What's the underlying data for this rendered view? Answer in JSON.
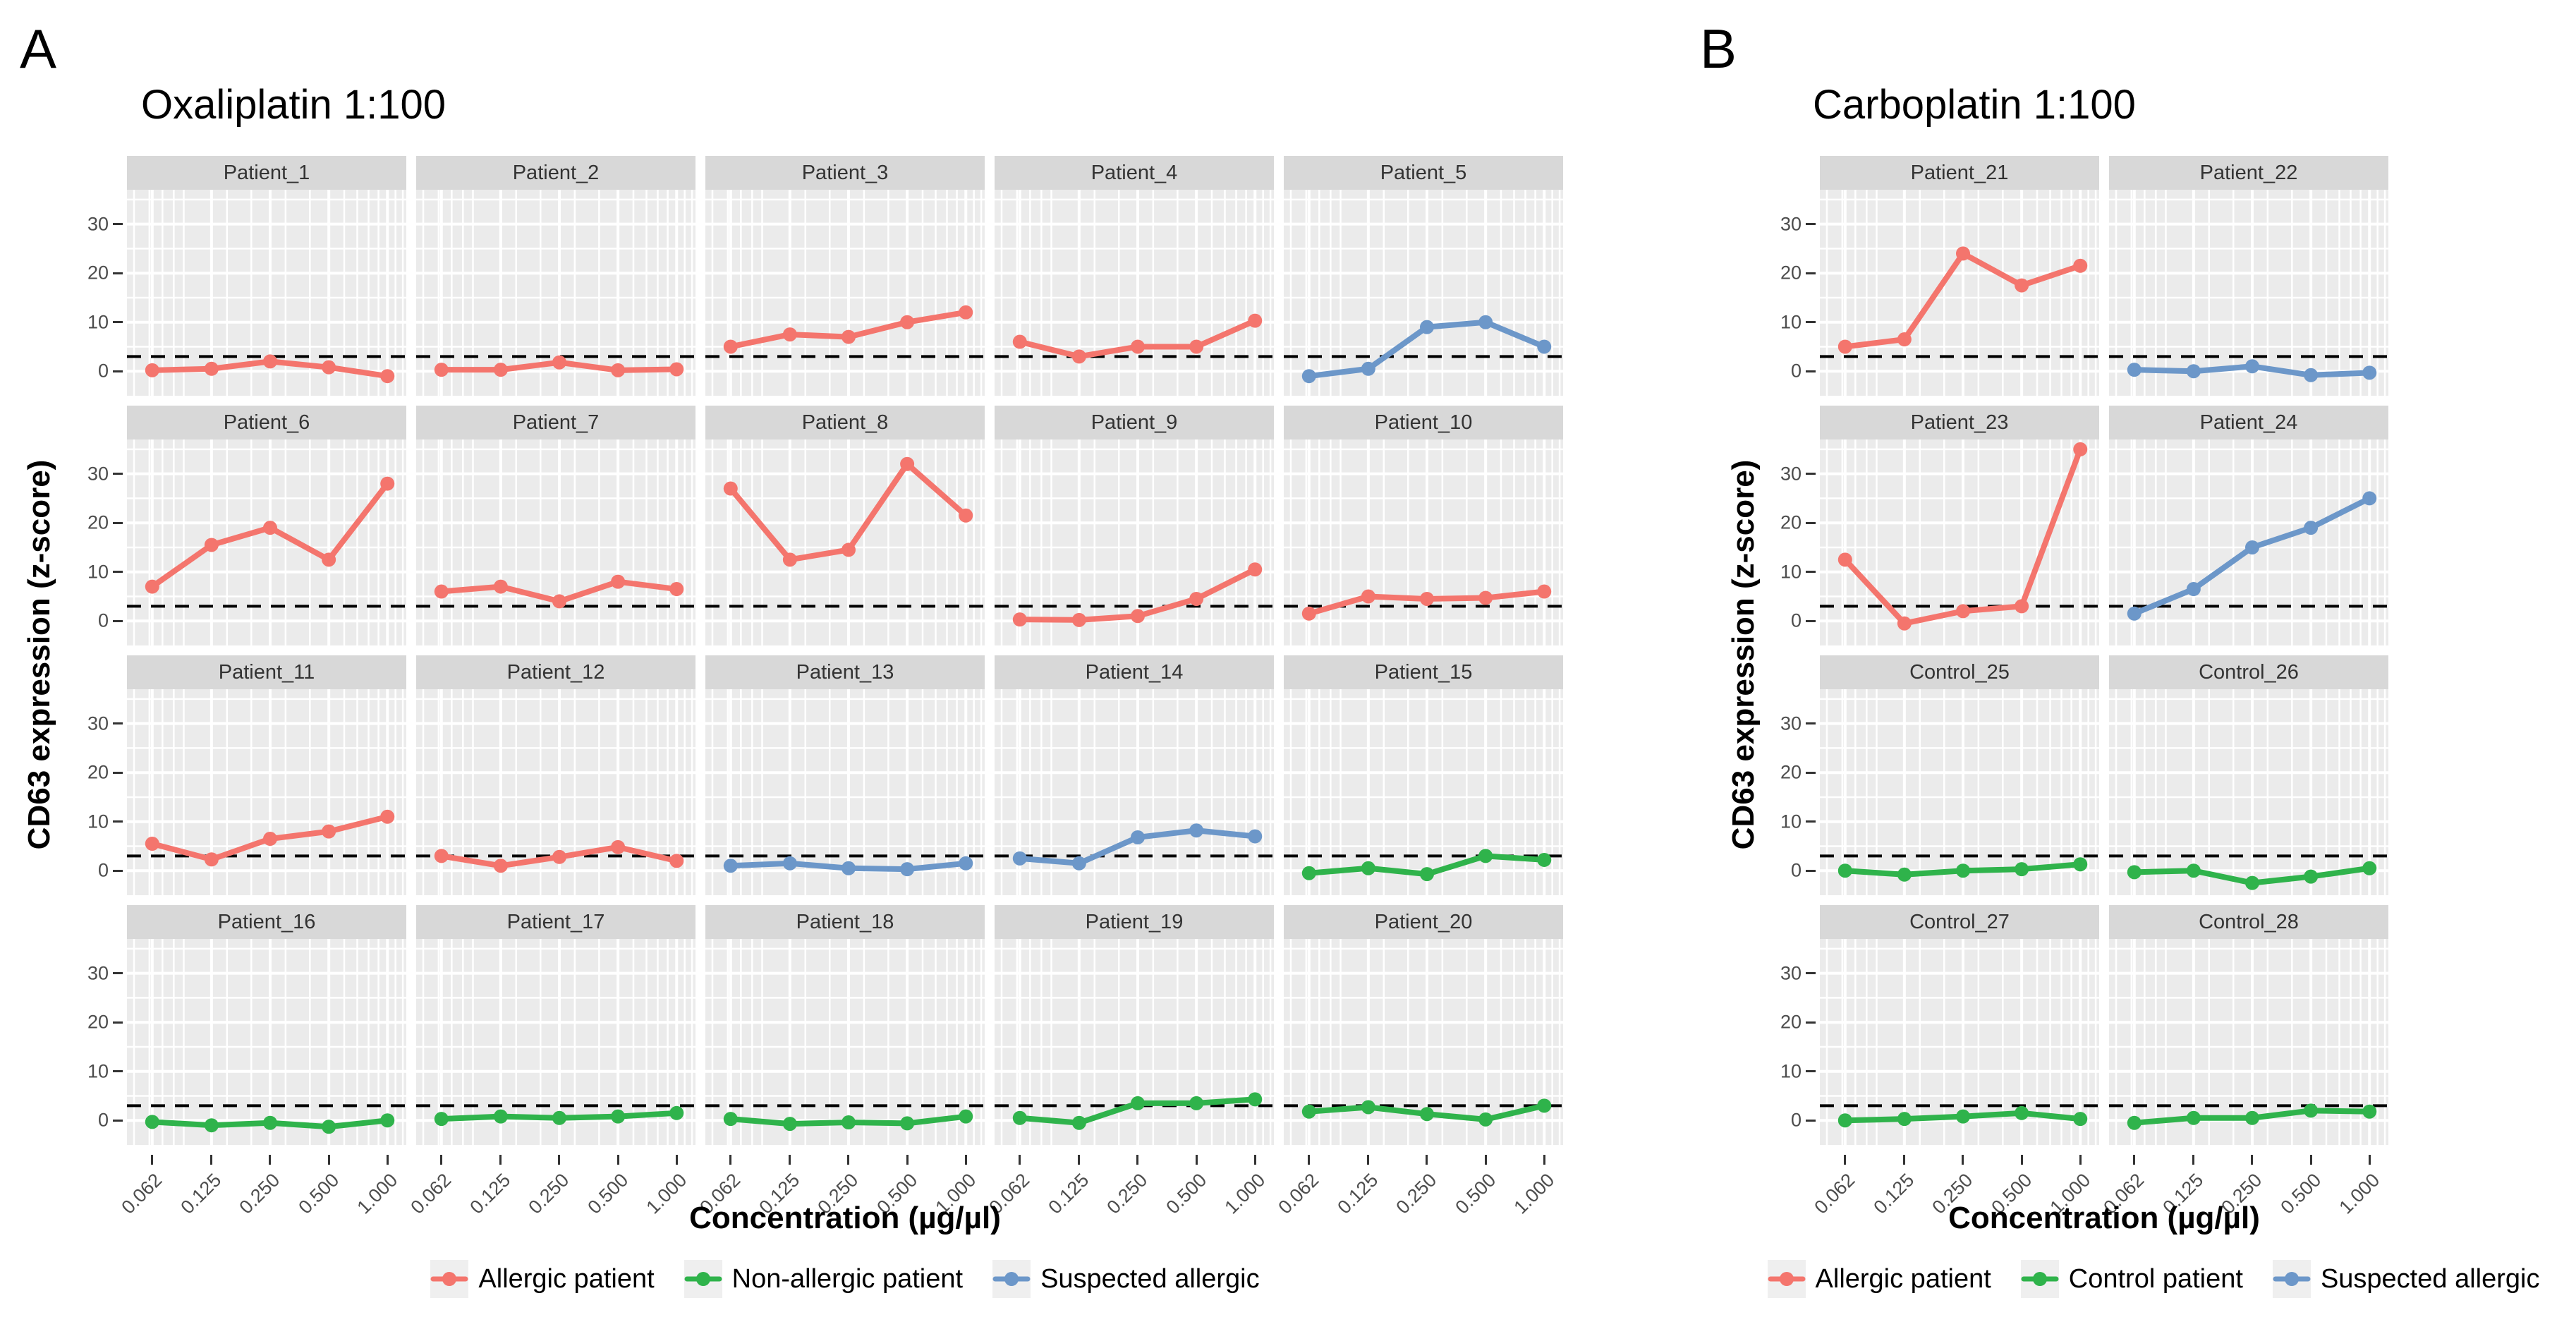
{
  "chart_data": {
    "type": "line",
    "x": [
      0.062,
      0.125,
      0.25,
      0.5,
      1.0
    ],
    "x_tick_labels": [
      "0.062",
      "0.125",
      "0.250",
      "0.500",
      "1.000"
    ],
    "x_scale": "log",
    "xlabel": "Concentration (µg/µl)",
    "ylabel": "CD63 expression (z-score)",
    "y_ticks": [
      0,
      10,
      20,
      30
    ],
    "y_tick_labels": [
      "0",
      "10",
      "20",
      "30"
    ],
    "ylim": [
      -5,
      37
    ],
    "threshold_y": 3,
    "grid": "on",
    "legend_position": "bottom",
    "colors": {
      "allergic": "#F4756D",
      "non_allergic": "#2FB34B",
      "suspected": "#6C97C9",
      "strip_bg": "#D8D8D8",
      "panel_bg": "#EBEBEB",
      "grid": "#FFFFFF",
      "threshold_line": "#000000",
      "axis_text": "#4D4D4D"
    },
    "panels": [
      {
        "panel_label": "A",
        "title": "Oxaliplatin 1:100",
        "columns": 5,
        "legend": [
          {
            "label": "Allergic patient",
            "series": "allergic"
          },
          {
            "label": "Non-allergic patient",
            "series": "non_allergic"
          },
          {
            "label": "Suspected allergic",
            "series": "suspected"
          }
        ],
        "facets": [
          {
            "name": "Patient_1",
            "series": "allergic",
            "values": [
              0.2,
              0.5,
              2.0,
              0.8,
              -1.0
            ]
          },
          {
            "name": "Patient_2",
            "series": "allergic",
            "values": [
              0.3,
              0.3,
              1.8,
              0.2,
              0.4
            ]
          },
          {
            "name": "Patient_3",
            "series": "allergic",
            "values": [
              5.0,
              7.5,
              7.0,
              10.0,
              12.0
            ]
          },
          {
            "name": "Patient_4",
            "series": "allergic",
            "values": [
              6.0,
              3.0,
              5.0,
              5.0,
              10.3
            ]
          },
          {
            "name": "Patient_5",
            "series": "suspected",
            "values": [
              -1.0,
              0.5,
              9.0,
              10.0,
              5.0
            ]
          },
          {
            "name": "Patient_6",
            "series": "allergic",
            "values": [
              7.0,
              15.5,
              19.0,
              12.5,
              28.0
            ]
          },
          {
            "name": "Patient_7",
            "series": "allergic",
            "values": [
              6.0,
              7.0,
              4.0,
              8.0,
              6.5
            ]
          },
          {
            "name": "Patient_8",
            "series": "allergic",
            "values": [
              27.0,
              12.5,
              14.5,
              32.0,
              21.5
            ]
          },
          {
            "name": "Patient_9",
            "series": "allergic",
            "values": [
              0.3,
              0.2,
              1.0,
              4.5,
              10.5
            ]
          },
          {
            "name": "Patient_10",
            "series": "allergic",
            "values": [
              1.5,
              5.0,
              4.5,
              4.7,
              6.0
            ]
          },
          {
            "name": "Patient_11",
            "series": "allergic",
            "values": [
              5.5,
              2.3,
              6.5,
              8.0,
              11.0
            ]
          },
          {
            "name": "Patient_12",
            "series": "allergic",
            "values": [
              3.0,
              1.0,
              2.8,
              4.8,
              2.0
            ]
          },
          {
            "name": "Patient_13",
            "series": "suspected",
            "values": [
              1.0,
              1.5,
              0.5,
              0.3,
              1.5
            ]
          },
          {
            "name": "Patient_14",
            "series": "suspected",
            "values": [
              2.5,
              1.5,
              6.8,
              8.2,
              7.0
            ]
          },
          {
            "name": "Patient_15",
            "series": "non_allergic",
            "values": [
              -0.5,
              0.5,
              -0.7,
              3.0,
              2.2
            ]
          },
          {
            "name": "Patient_16",
            "series": "non_allergic",
            "values": [
              -0.3,
              -1.0,
              -0.5,
              -1.3,
              0.0
            ]
          },
          {
            "name": "Patient_17",
            "series": "non_allergic",
            "values": [
              0.3,
              0.8,
              0.5,
              0.8,
              1.5
            ]
          },
          {
            "name": "Patient_18",
            "series": "non_allergic",
            "values": [
              0.3,
              -0.7,
              -0.4,
              -0.6,
              0.8
            ]
          },
          {
            "name": "Patient_19",
            "series": "non_allergic",
            "values": [
              0.5,
              -0.5,
              3.5,
              3.5,
              4.3
            ]
          },
          {
            "name": "Patient_20",
            "series": "non_allergic",
            "values": [
              1.8,
              2.7,
              1.3,
              0.2,
              3.0
            ]
          }
        ]
      },
      {
        "panel_label": "B",
        "title": "Carboplatin 1:100",
        "columns": 2,
        "legend": [
          {
            "label": "Allergic patient",
            "series": "allergic"
          },
          {
            "label": "Control patient",
            "series": "non_allergic"
          },
          {
            "label": "Suspected allergic",
            "series": "suspected"
          }
        ],
        "facets": [
          {
            "name": "Patient_21",
            "series": "allergic",
            "values": [
              5.0,
              6.5,
              24.0,
              17.5,
              21.5
            ]
          },
          {
            "name": "Patient_22",
            "series": "suspected",
            "values": [
              0.3,
              0.0,
              1.0,
              -0.8,
              -0.3
            ]
          },
          {
            "name": "Patient_23",
            "series": "allergic",
            "values": [
              12.5,
              -0.5,
              2.0,
              3.0,
              35.0
            ]
          },
          {
            "name": "Patient_24",
            "series": "suspected",
            "values": [
              1.5,
              6.5,
              15.0,
              19.0,
              25.0
            ]
          },
          {
            "name": "Control_25",
            "series": "non_allergic",
            "values": [
              0.0,
              -0.8,
              0.0,
              0.3,
              1.3
            ]
          },
          {
            "name": "Control_26",
            "series": "non_allergic",
            "values": [
              -0.3,
              0.0,
              -2.5,
              -1.2,
              0.5
            ]
          },
          {
            "name": "Control_27",
            "series": "non_allergic",
            "values": [
              0.0,
              0.3,
              0.8,
              1.5,
              0.3
            ]
          },
          {
            "name": "Control_28",
            "series": "non_allergic",
            "values": [
              -0.5,
              0.5,
              0.5,
              2.0,
              1.8
            ]
          }
        ]
      }
    ]
  }
}
